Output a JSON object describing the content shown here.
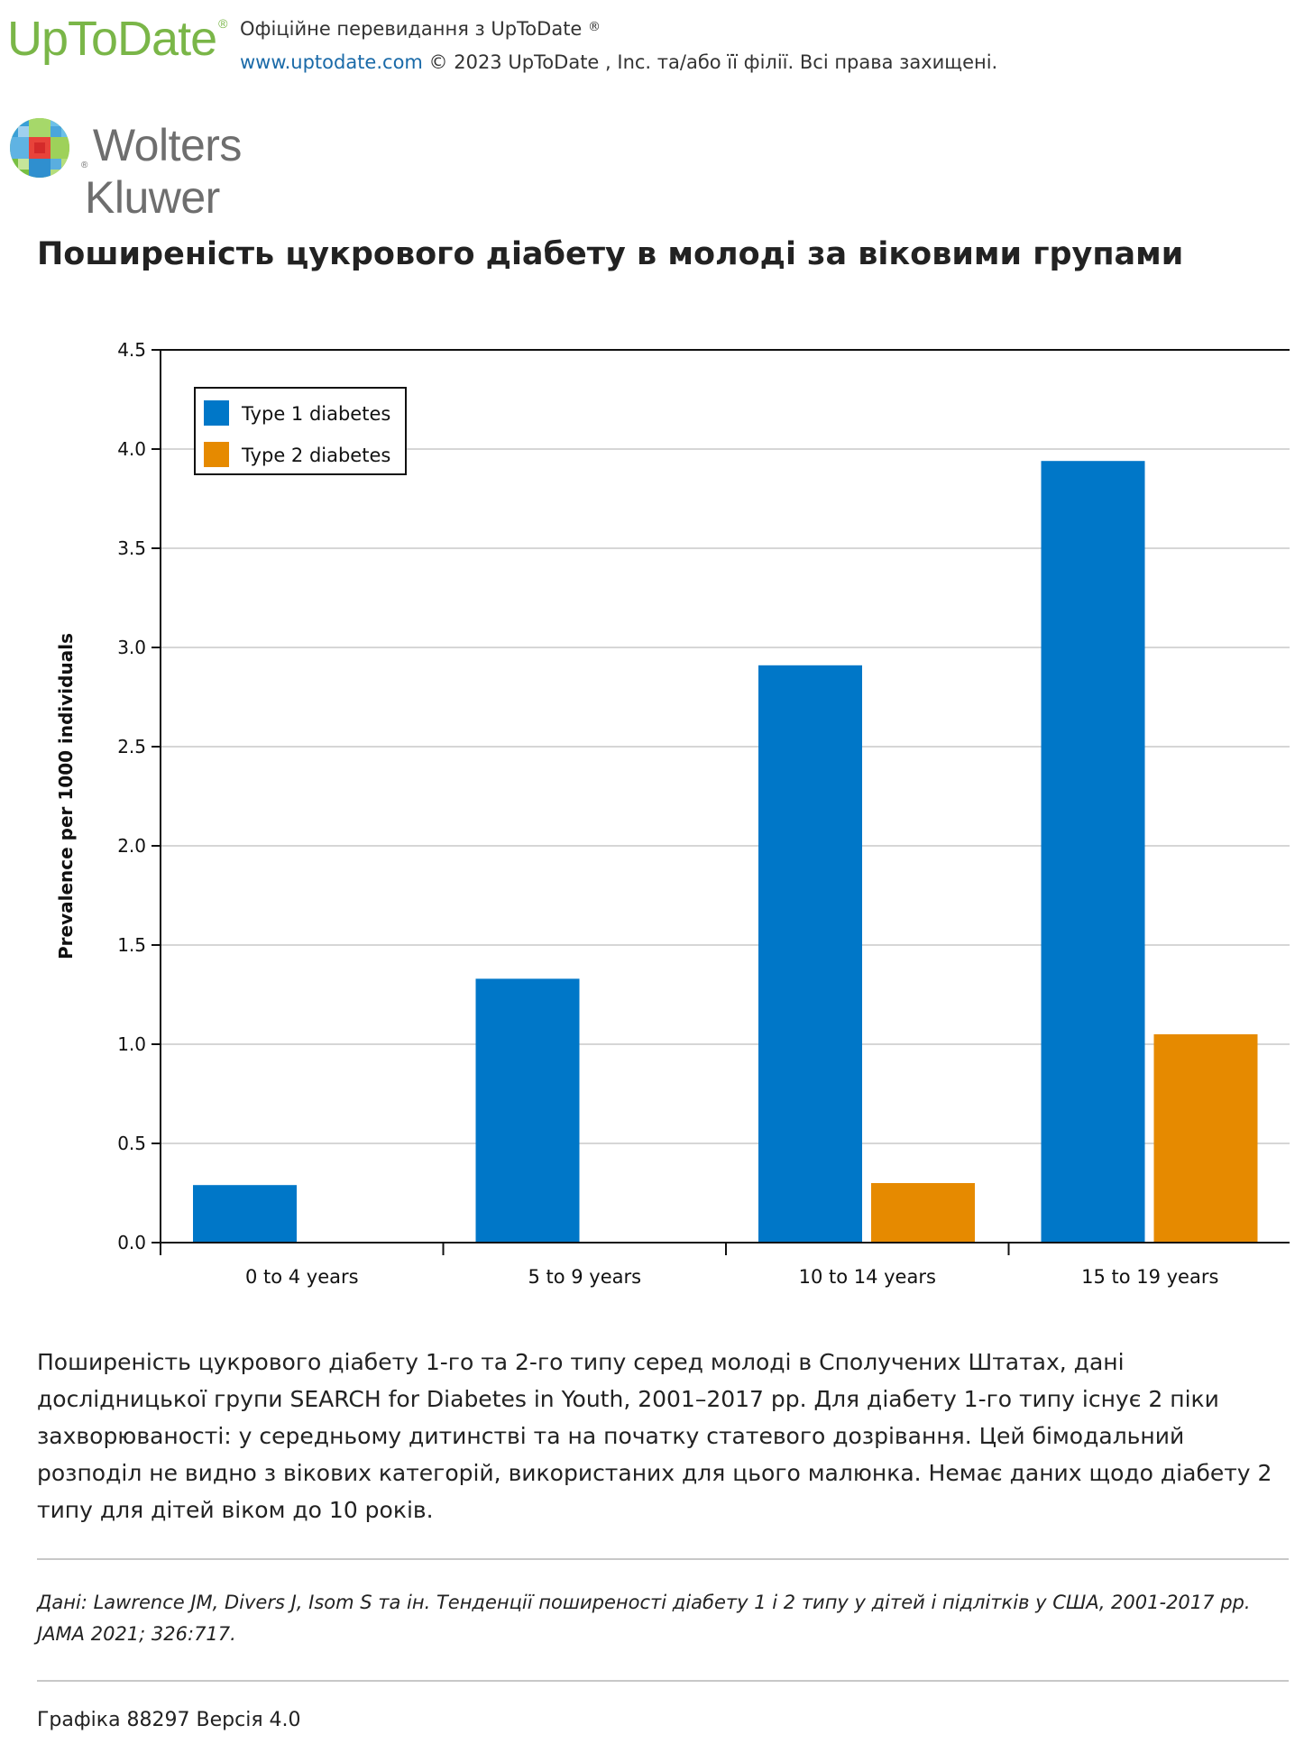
{
  "header": {
    "logo_text": "UpToDate",
    "logo_reg": "®",
    "line1": "Офіційне перевидання з UpToDate",
    "line1_reg": "®",
    "link": "www.uptodate.com",
    "line2_rest": " © 2023 UpToDate , Inc. та/або її філії. Всі права захищені.",
    "publisher_logo_text": "Wolters Kluwer",
    "publisher_reg": "®",
    "brand_color": "#7ab648",
    "link_color": "#1a6aa8"
  },
  "title": "Поширеність цукрового діабету в молоді за віковими групами",
  "chart_data": {
    "type": "bar",
    "title": "",
    "xlabel": "",
    "ylabel": "Prevalence per 1000 individuals",
    "categories": [
      "0 to 4 years",
      "5 to 9 years",
      "10 to 14 years",
      "15 to 19 years"
    ],
    "series": [
      {
        "name": "Type 1 diabetes",
        "color": "#0077c8",
        "values": [
          0.29,
          1.33,
          2.91,
          3.94
        ]
      },
      {
        "name": "Type 2 diabetes",
        "color": "#e68a00",
        "values": [
          null,
          null,
          0.3,
          1.05
        ]
      }
    ],
    "ylim": [
      0,
      4.5
    ],
    "yticks": [
      "0.0",
      "0.5",
      "1.0",
      "1.5",
      "2.0",
      "2.5",
      "3.0",
      "3.5",
      "4.0",
      "4.5"
    ],
    "grid": true,
    "legend_position": "top-left"
  },
  "caption": "Поширеність цукрового діабету 1-го та 2-го типу серед молоді в Сполучених Штатах, дані дослідницької групи SEARCH for Diabetes in Youth, 2001–2017 рр. Для діабету 1-го типу існує 2 піки захворюваності: у середньому дитинстві та на початку статевого дозрівання. Цей бімодальний розподіл не видно з вікових категорій, використаних для цього малюнка. Немає даних щодо діабету 2 типу для дітей віком до 10 років.",
  "source": "Дані: Lawrence JM, Divers J, Isom S та ін. Тенденції поширеності діабету 1 і 2 типу у дітей і підлітків у США, 2001-2017 рр. JAMA 2021; 326:717.",
  "version": "Графіка 88297 Версія 4.0"
}
